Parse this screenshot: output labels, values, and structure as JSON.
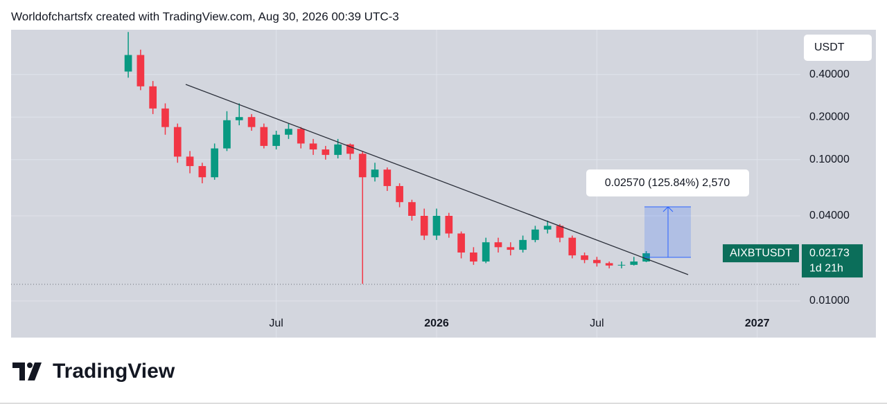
{
  "header": {
    "title": "Worldofchartsfx created with TradingView.com, Aug 30, 2026 00:39 UTC-3"
  },
  "chart_data": {
    "type": "candlestick",
    "symbol": "AIXBTUSDT",
    "currency": "USDT",
    "last_price": 0.02173,
    "countdown": "1d 21h",
    "measure_label": "0.02570 (125.84%) 2,570",
    "log_scale": true,
    "grid": true,
    "up_color": "#089981",
    "down_color": "#f23645",
    "categories": [
      null,
      null,
      null,
      null,
      null,
      null,
      null,
      null,
      null,
      null,
      null,
      null,
      null,
      null,
      null,
      null,
      null,
      null,
      null,
      null,
      null,
      "Jul",
      null,
      null,
      null,
      null,
      null,
      null,
      null,
      null,
      null,
      null,
      null,
      null,
      "2026",
      null,
      null,
      null,
      null,
      null,
      null,
      null,
      null,
      null,
      null,
      null,
      null,
      "Jul",
      null,
      null,
      null,
      null,
      null,
      null,
      null,
      null,
      null,
      null,
      null,
      null,
      "2027",
      null,
      null,
      null
    ],
    "open": [
      null,
      null,
      null,
      null,
      null,
      null,
      null,
      null,
      null,
      0.42,
      0.55,
      0.33,
      0.23,
      0.17,
      0.105,
      0.09,
      0.075,
      0.12,
      0.19,
      0.2,
      0.17,
      0.125,
      0.15,
      0.165,
      0.13,
      0.118,
      0.108,
      0.128,
      0.11,
      0.075,
      0.085,
      0.065,
      0.05,
      0.04,
      0.029,
      0.04,
      0.03,
      0.022,
      0.019,
      0.026,
      0.024,
      0.023,
      0.027,
      0.032,
      0.034,
      0.028,
      0.021,
      0.0195,
      0.0185,
      0.0178,
      0.018,
      0.019,
      null,
      null,
      null,
      null,
      null,
      null,
      null,
      null,
      null,
      null,
      null,
      null
    ],
    "high": [
      null,
      null,
      null,
      null,
      null,
      null,
      null,
      null,
      null,
      0.8,
      0.6,
      0.36,
      0.25,
      0.18,
      0.115,
      0.095,
      0.13,
      0.22,
      0.25,
      0.21,
      0.18,
      0.16,
      0.18,
      0.17,
      0.14,
      0.125,
      0.14,
      0.13,
      0.115,
      0.095,
      0.088,
      0.068,
      0.052,
      0.045,
      0.045,
      0.042,
      0.031,
      0.024,
      0.028,
      0.028,
      0.026,
      0.029,
      0.034,
      0.037,
      0.035,
      0.029,
      0.022,
      0.0205,
      0.019,
      0.019,
      0.0205,
      0.0225,
      null,
      null,
      null,
      null,
      null,
      null,
      null,
      null,
      null,
      null,
      null,
      null
    ],
    "low": [
      null,
      null,
      null,
      null,
      null,
      null,
      null,
      null,
      null,
      0.38,
      0.31,
      0.21,
      0.15,
      0.095,
      0.08,
      0.068,
      0.072,
      0.115,
      0.175,
      0.16,
      0.12,
      0.118,
      0.14,
      0.12,
      0.108,
      0.1,
      0.102,
      0.1,
      0.0132,
      0.07,
      0.06,
      0.046,
      0.037,
      0.027,
      0.027,
      0.028,
      0.02,
      0.018,
      0.0185,
      0.022,
      0.021,
      0.022,
      0.026,
      0.03,
      0.026,
      0.02,
      0.0185,
      0.0175,
      0.017,
      0.017,
      0.0178,
      0.0188,
      null,
      null,
      null,
      null,
      null,
      null,
      null,
      null,
      null,
      null,
      null,
      null
    ],
    "close": [
      null,
      null,
      null,
      null,
      null,
      null,
      null,
      null,
      null,
      0.55,
      0.33,
      0.23,
      0.17,
      0.105,
      0.09,
      0.075,
      0.12,
      0.19,
      0.2,
      0.17,
      0.125,
      0.15,
      0.165,
      0.13,
      0.118,
      0.108,
      0.128,
      0.11,
      0.075,
      0.085,
      0.065,
      0.05,
      0.04,
      0.029,
      0.04,
      0.03,
      0.022,
      0.019,
      0.026,
      0.024,
      0.023,
      0.027,
      0.032,
      0.034,
      0.028,
      0.021,
      0.0195,
      0.0185,
      0.0178,
      0.018,
      0.019,
      0.02173,
      null,
      null,
      null,
      null,
      null,
      null,
      null,
      null,
      null,
      null,
      null,
      null
    ],
    "ylim": [
      0.0055,
      0.83
    ],
    "yticks": [
      {
        "value": 0.4,
        "label": "0.40000"
      },
      {
        "value": 0.2,
        "label": "0.20000"
      },
      {
        "value": 0.1,
        "label": "0.10000"
      },
      {
        "value": 0.04,
        "label": "0.04000"
      },
      {
        "value": 0.01,
        "label": "0.01000"
      }
    ]
  },
  "footer": {
    "brand": "TradingView"
  }
}
